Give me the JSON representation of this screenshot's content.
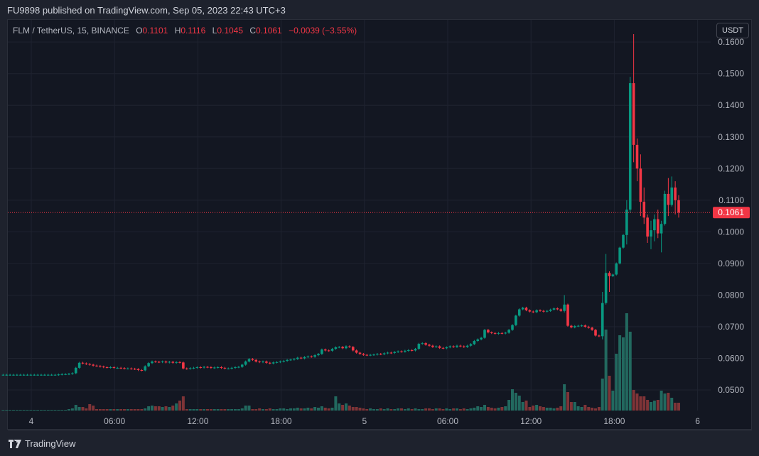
{
  "header": {
    "published": "FU9898 published on TradingView.com, Sep 05, 2023 22:43 UTC+3"
  },
  "legend": {
    "symbol": "FLM / TetherUS, 15, BINANCE",
    "o_label": "O",
    "o": "0.1101",
    "h_label": "H",
    "h": "0.1116",
    "l_label": "L",
    "l": "0.1045",
    "c_label": "C",
    "c": "0.1061",
    "change": "−0.0039 (−3.55%)"
  },
  "currency_button": "USDT",
  "footer": {
    "brand": "TradingView",
    "logo": "TV"
  },
  "colors": {
    "up": "#089981",
    "down": "#f23645",
    "up_volume": "#22695f",
    "down_volume": "#7f3437",
    "background": "#131722",
    "grid": "#1e222d",
    "last_price": "#f23645"
  },
  "chart_data": {
    "type": "candlestick",
    "interval": "15",
    "ylim": [
      0.0435,
      0.167
    ],
    "y_ticks": [
      "0.1600",
      "0.1500",
      "0.1400",
      "0.1300",
      "0.1200",
      "0.1100",
      "0.1000",
      "0.0900",
      "0.0800",
      "0.0700",
      "0.0600",
      "0.0500"
    ],
    "x_ticks": [
      "4",
      "06:00",
      "12:00",
      "18:00",
      "5",
      "06:00",
      "12:00",
      "18:00",
      "6"
    ],
    "last_price": "0.1061",
    "first_open": 0.0548,
    "close": [
      0.0548,
      0.0548,
      0.0548,
      0.0548,
      0.0548,
      0.0548,
      0.0548,
      0.0548,
      0.0548,
      0.0548,
      0.0548,
      0.0548,
      0.0548,
      0.0548,
      0.0548,
      0.0548,
      0.0549,
      0.055,
      0.055,
      0.0551,
      0.0553,
      0.057,
      0.0586,
      0.0584,
      0.0582,
      0.058,
      0.0577,
      0.0576,
      0.0574,
      0.0572,
      0.0571,
      0.0572,
      0.057,
      0.057,
      0.0569,
      0.0568,
      0.0568,
      0.0567,
      0.0566,
      0.0563,
      0.0562,
      0.0575,
      0.0585,
      0.059,
      0.0589,
      0.0588,
      0.059,
      0.0587,
      0.0589,
      0.0586,
      0.0588,
      0.0587,
      0.0568,
      0.0567,
      0.0569,
      0.057,
      0.0572,
      0.0571,
      0.0573,
      0.0572,
      0.057,
      0.0571,
      0.0572,
      0.057,
      0.0568,
      0.0568,
      0.057,
      0.0572,
      0.0573,
      0.058,
      0.059,
      0.0598,
      0.0595,
      0.059,
      0.0588,
      0.059,
      0.0586,
      0.0584,
      0.0587,
      0.0588,
      0.059,
      0.0592,
      0.0595,
      0.0596,
      0.0598,
      0.0602,
      0.06,
      0.0604,
      0.0606,
      0.0605,
      0.061,
      0.0614,
      0.0628,
      0.0625,
      0.0624,
      0.063,
      0.0635,
      0.0636,
      0.0632,
      0.0638,
      0.0636,
      0.0625,
      0.0618,
      0.0614,
      0.0611,
      0.061,
      0.0611,
      0.0612,
      0.0614,
      0.0613,
      0.0616,
      0.0618,
      0.0617,
      0.062,
      0.0622,
      0.0621,
      0.0624,
      0.0626,
      0.0625,
      0.063,
      0.0646,
      0.0648,
      0.0643,
      0.064,
      0.0636,
      0.0638,
      0.0633,
      0.0632,
      0.0635,
      0.0638,
      0.0636,
      0.064,
      0.0638,
      0.0636,
      0.064,
      0.0645,
      0.0655,
      0.066,
      0.0665,
      0.069,
      0.0682,
      0.068,
      0.0678,
      0.068,
      0.0679,
      0.0681,
      0.069,
      0.0705,
      0.0735,
      0.0755,
      0.076,
      0.0752,
      0.0748,
      0.0746,
      0.0752,
      0.075,
      0.0748,
      0.075,
      0.0754,
      0.0758,
      0.0755,
      0.075,
      0.077,
      0.0703,
      0.0698,
      0.0702,
      0.0703,
      0.0704,
      0.07,
      0.0697,
      0.069,
      0.0672,
      0.067,
      0.0775,
      0.087,
      0.086,
      0.0865,
      0.09,
      0.095,
      0.099,
      0.107,
      0.147,
      0.1275,
      0.12,
      0.1095,
      0.1045,
      0.0985,
      0.1005,
      0.104,
      0.0995,
      0.1025,
      0.112,
      0.1085,
      0.114,
      0.11,
      0.1061
    ],
    "wick_overrides": {
      "181": [
        0.149,
        0.106
      ],
      "182": [
        0.1625,
        0.122
      ],
      "183": [
        0.1295,
        0.116
      ],
      "184": [
        0.1245,
        0.105
      ],
      "185": [
        0.114,
        0.1025
      ],
      "186": [
        0.1055,
        0.0965
      ],
      "187": [
        0.1035,
        0.0945
      ],
      "188": [
        0.1055,
        0.097
      ],
      "189": [
        0.107,
        0.098
      ],
      "190": [
        0.1035,
        0.0935
      ],
      "191": [
        0.113,
        0.102
      ],
      "192": [
        0.117,
        0.105
      ],
      "193": [
        0.1175,
        0.108
      ],
      "194": [
        0.116,
        0.1055
      ],
      "195": [
        0.1116,
        0.1045
      ],
      "180": [
        0.11,
        0.096
      ],
      "174": [
        0.093,
        0.077
      ],
      "175": [
        0.0875,
        0.081
      ],
      "162": [
        0.08,
        0.0745
      ],
      "173": [
        0.081,
        0.066
      ]
    },
    "volume": [
      1,
      1,
      1,
      1,
      1,
      1,
      1,
      1,
      1,
      1,
      1,
      1,
      1,
      1,
      1,
      1,
      1,
      1,
      1,
      2,
      3,
      8,
      5,
      5,
      3,
      9,
      7,
      2,
      2,
      2,
      2,
      2,
      2,
      2,
      2,
      2,
      2,
      2,
      2,
      2,
      2,
      3,
      6,
      7,
      6,
      6,
      5,
      6,
      5,
      7,
      10,
      14,
      20,
      2,
      2,
      2,
      2,
      2,
      2,
      2,
      2,
      2,
      2,
      2,
      2,
      2,
      2,
      2,
      2,
      3,
      7,
      7,
      2,
      2,
      3,
      2,
      2,
      3,
      2,
      2,
      3,
      3,
      2,
      3,
      3,
      4,
      3,
      3,
      4,
      3,
      5,
      4,
      6,
      4,
      3,
      4,
      20,
      10,
      8,
      10,
      7,
      5,
      5,
      4,
      3,
      2,
      3,
      2,
      2,
      3,
      2,
      3,
      2,
      2,
      3,
      3,
      2,
      3,
      2,
      3,
      2,
      2,
      3,
      3,
      2,
      3,
      3,
      2,
      3,
      2,
      3,
      3,
      2,
      3,
      2,
      3,
      4,
      6,
      5,
      8,
      5,
      4,
      3,
      4,
      5,
      6,
      15,
      30,
      25,
      21,
      12,
      14,
      5,
      7,
      8,
      6,
      5,
      4,
      4,
      3,
      4,
      6,
      37,
      26,
      12,
      12,
      6,
      5,
      8,
      5,
      4,
      3,
      5,
      45,
      114,
      49,
      28,
      80,
      106,
      103,
      137,
      111,
      29,
      24,
      20,
      20,
      15,
      12,
      14,
      15,
      28,
      24,
      25,
      18,
      11,
      11
    ]
  }
}
